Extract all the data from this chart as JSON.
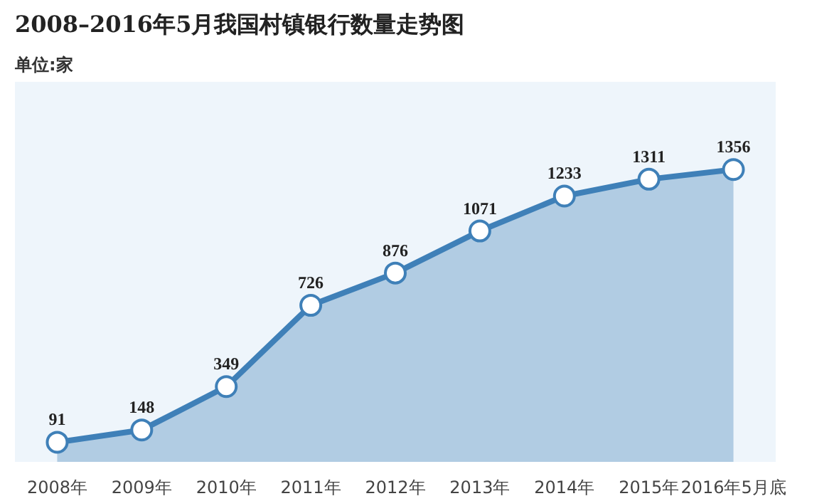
{
  "chart_data": {
    "type": "area",
    "title": "2008–2016年5月我国村镇银行数量走势图",
    "subtitle": "单位:家",
    "categories": [
      "2008年",
      "2009年",
      "2010年",
      "2011年",
      "2012年",
      "2013年",
      "2014年",
      "2015年",
      "2016年5月底"
    ],
    "values": [
      91,
      148,
      349,
      726,
      876,
      1071,
      1233,
      1311,
      1356
    ],
    "color": "#3f80b8",
    "marker": "circle",
    "data_labels": true,
    "grid": false
  }
}
